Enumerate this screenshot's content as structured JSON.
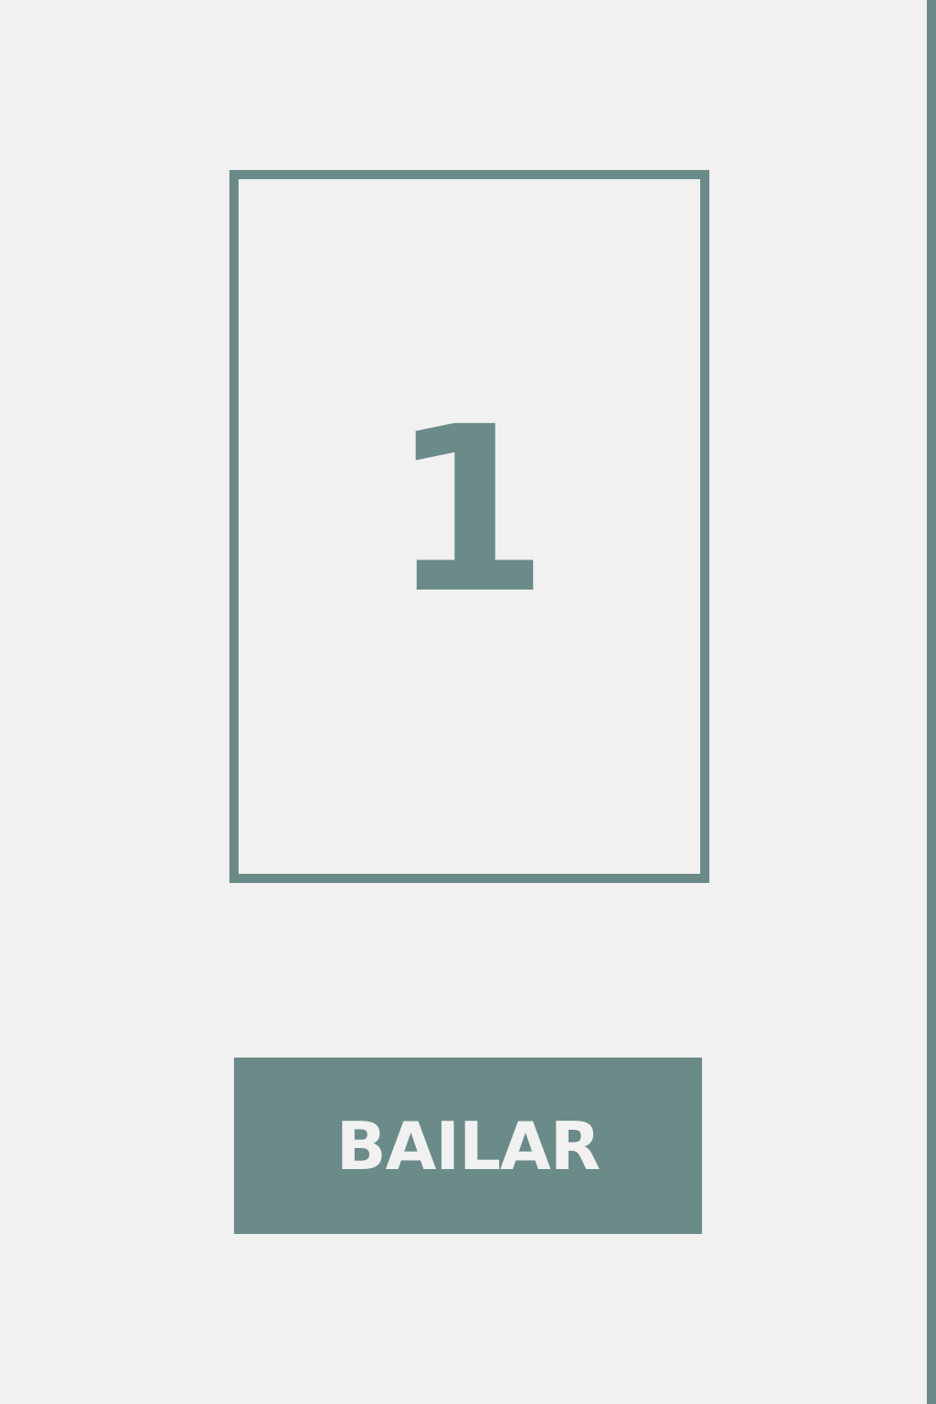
{
  "colors": {
    "background": "#f0f1f0",
    "accent": "#6a8b87",
    "button_text": "#f0f1f0"
  },
  "card": {
    "value": "1"
  },
  "action_button": {
    "label": "BAILAR"
  }
}
